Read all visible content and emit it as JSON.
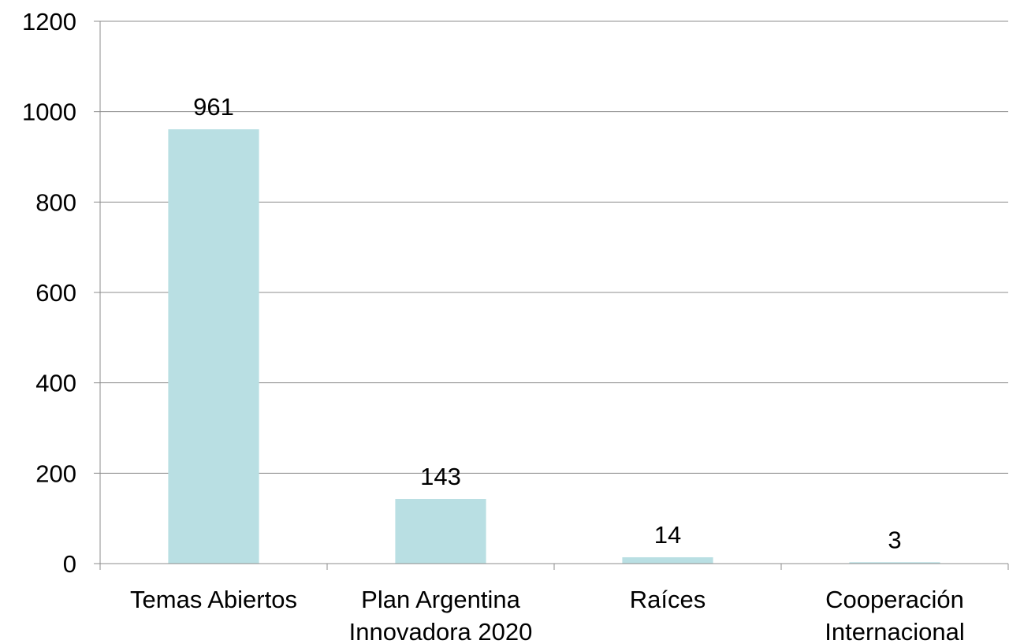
{
  "chart_data": {
    "type": "bar",
    "title": "",
    "xlabel": "",
    "ylabel": "",
    "categories": [
      [
        "Temas Abiertos"
      ],
      [
        "Plan Argentina",
        "Innovadora 2020"
      ],
      [
        "Raíces"
      ],
      [
        "Cooperación",
        "Internacional"
      ]
    ],
    "values": [
      961,
      143,
      14,
      3
    ],
    "data_labels": [
      "961",
      "143",
      "14",
      "3"
    ],
    "ylim": [
      0,
      1200
    ],
    "yticks": [
      0,
      200,
      400,
      600,
      800,
      1000,
      1200
    ],
    "grid": true,
    "legend": "none",
    "bar_color": "#b9dfe3",
    "grid_color": "#8c8c8c",
    "text_color": "#000000"
  }
}
